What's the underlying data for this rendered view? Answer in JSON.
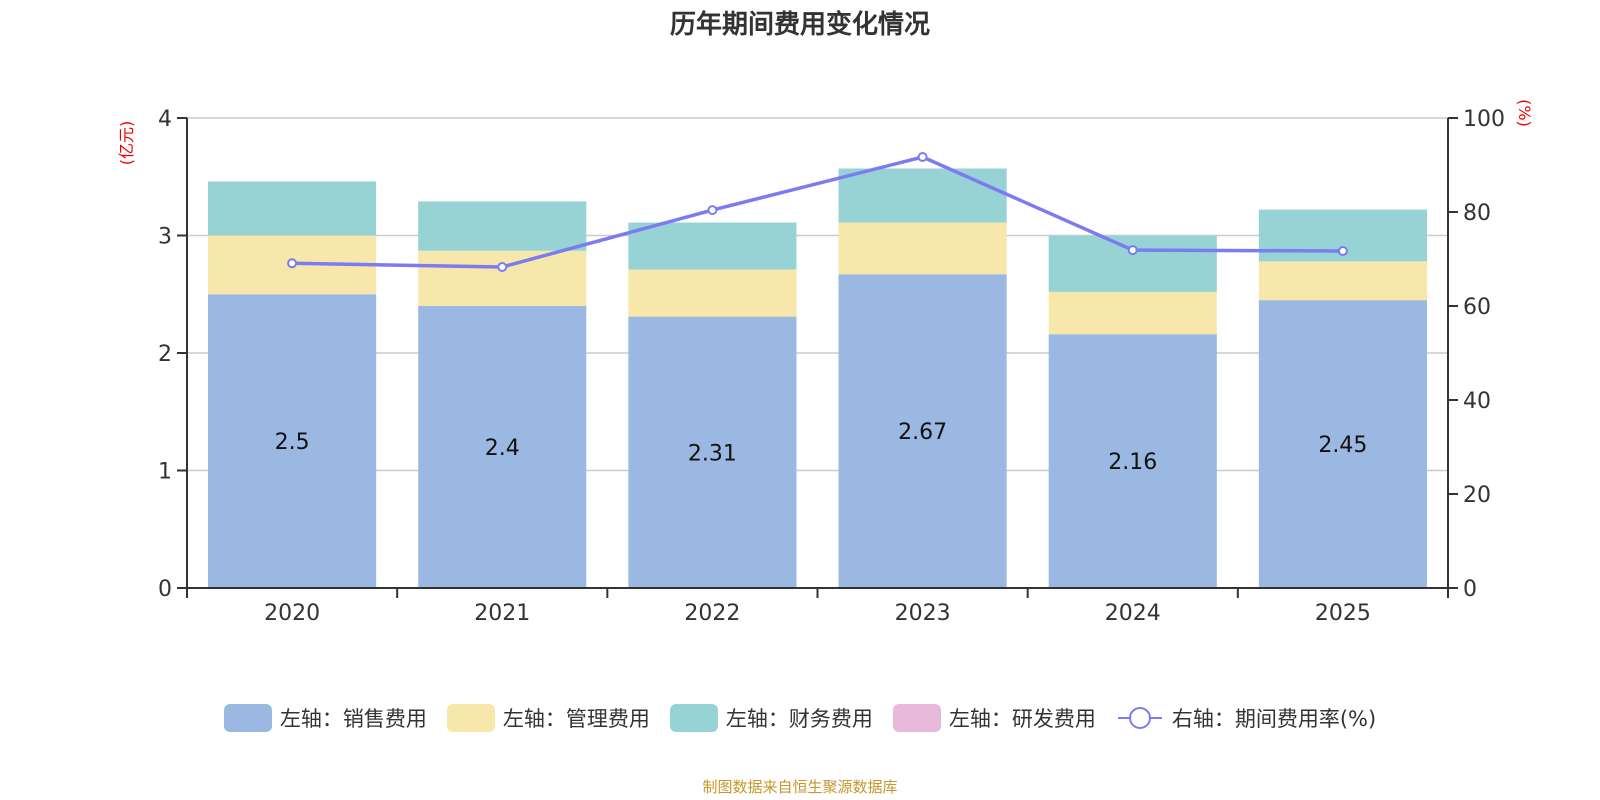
{
  "chart_data": {
    "type": "bar",
    "stacked": true,
    "title": "历年期间费用变化情况",
    "categories": [
      "2020",
      "2021",
      "2022",
      "2023",
      "2024",
      "2025"
    ],
    "y_left": {
      "label": "(亿元)",
      "ylim": [
        0,
        4
      ],
      "ticks": [
        "0",
        "1",
        "2",
        "3",
        "4"
      ]
    },
    "y_right": {
      "label": "(%)",
      "ylim": [
        0,
        100
      ],
      "ticks": [
        "0",
        "20",
        "40",
        "60",
        "80",
        "100"
      ]
    },
    "grid": true,
    "legend_position": "bottom",
    "series": [
      {
        "name": "左轴：销售费用",
        "axis": "left",
        "type": "bar",
        "color": "#9bb8e2",
        "values": [
          2.5,
          2.4,
          2.31,
          2.67,
          2.16,
          2.45
        ],
        "labels": [
          "2.5",
          "2.4",
          "2.31",
          "2.67",
          "2.16",
          "2.45"
        ]
      },
      {
        "name": "左轴：管理费用",
        "axis": "left",
        "type": "bar",
        "color": "#f8e7ab",
        "values": [
          0.5,
          0.47,
          0.4,
          0.44,
          0.36,
          0.33
        ]
      },
      {
        "name": "左轴：财务费用",
        "axis": "left",
        "type": "bar",
        "color": "#97d3d4",
        "values": [
          0.46,
          0.42,
          0.4,
          0.46,
          0.48,
          0.44
        ]
      },
      {
        "name": "左轴：研发费用",
        "axis": "left",
        "type": "bar",
        "color": "#e8b9da",
        "values": [
          0,
          0,
          0,
          0,
          0,
          0
        ]
      },
      {
        "name": "右轴：期间费用率(%)",
        "axis": "right",
        "type": "line",
        "color": "#7b7cf0",
        "values": [
          69.1,
          68.3,
          80.4,
          91.7,
          71.9,
          71.7
        ]
      }
    ]
  },
  "source": "制图数据来自恒生聚源数据库"
}
